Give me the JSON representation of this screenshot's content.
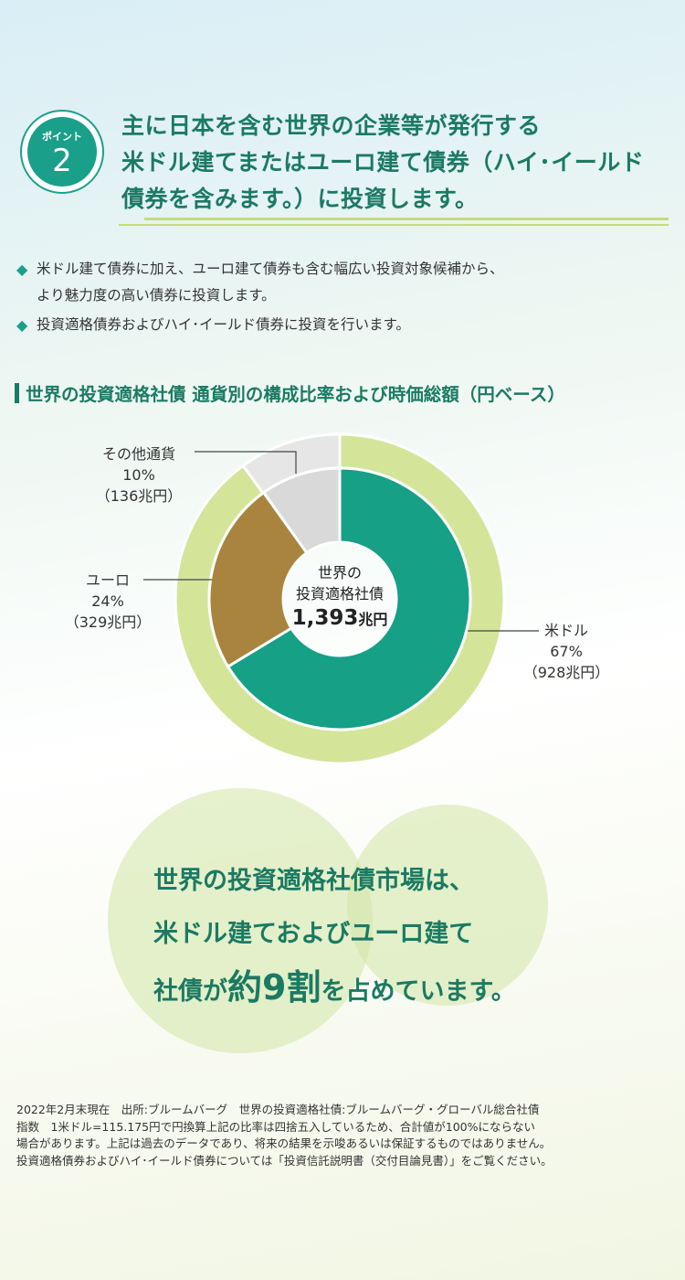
{
  "point": {
    "label": "ポイント",
    "number": "2"
  },
  "headline": [
    "主に日本を含む世界の企業等が発行する",
    "米ドル建てまたはユーロ建て債券（ハイ･イールド",
    "債券を含みます。）に投資します。"
  ],
  "bullets": [
    {
      "lines": [
        "米ドル建て債券に加え、ユーロ建て債券も含む幅広い投資対象候補から、",
        "より魅力度の高い債券に投資します。"
      ]
    },
    {
      "lines": [
        "投資適格債券およびハイ･イールド債券に投資を行います。"
      ]
    }
  ],
  "chart_data": {
    "type": "pie",
    "title": "世界の投資適格社債 通貨別の構成比率および時価総額（円ベース）",
    "center": {
      "line1": "世界の",
      "line2": "投資適格社債",
      "total": "1,393",
      "unit": "兆円"
    },
    "slices": [
      {
        "name": "米ドル",
        "value": 67,
        "pct_label": "67%",
        "amount_label": "（928兆円）",
        "color": "#16a085"
      },
      {
        "name": "ユーロ",
        "value": 24,
        "pct_label": "24%",
        "amount_label": "（329兆円）",
        "color": "#a8843e"
      },
      {
        "name": "その他通貨",
        "value": 10,
        "pct_label": "10%",
        "amount_label": "（136兆円）",
        "color": "#d9d9d9"
      }
    ],
    "outer_ring": [
      {
        "value": 90,
        "color": "#d4e59a"
      },
      {
        "value": 10,
        "color": "#e6e6e6"
      }
    ]
  },
  "summary": {
    "line1": "世界の投資適格社債市場は、",
    "line2": "米ドル建ておよびユーロ建て",
    "line3_pre": "社債が",
    "line3_accent": "約9割",
    "line3_post": "を占めています。"
  },
  "note": [
    "2022年2月末現在　出所:ブルームバーグ　世界の投資適格社債:ブルームバーグ・グローバル総合社債",
    "指数　1米ドル=115.175円で円換算上記の比率は四捨五入しているため、合計値が100%にならない",
    "場合があります。上記は過去のデータであり、将来の結果を示唆あるいは保証するものではありません。",
    "投資適格債券およびハイ･イールド債券については「投資信託説明書（交付目論見書）」をご覧ください。"
  ]
}
